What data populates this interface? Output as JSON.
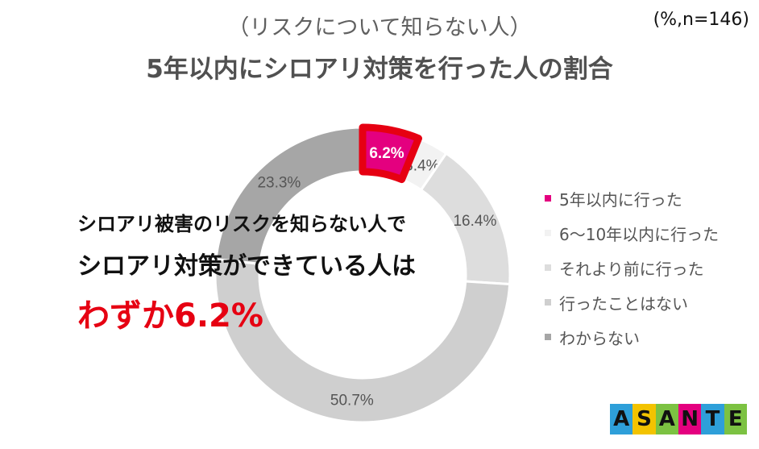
{
  "header": {
    "subtitle": "（リスクについて知らない人）",
    "title": "5年以内にシロアリ対策を行った人の割合",
    "unit": "(%,n=146)"
  },
  "callout": {
    "line1": "シロアリ被害のリスクを知らない人で",
    "line2": "シロアリ対策ができている人は",
    "line3": "わずか6.2%"
  },
  "chart_data": {
    "type": "pie",
    "donut": true,
    "categories": [
      "5年以内に行った",
      "6～10年以内に行った",
      "それより前に行った",
      "行ったことはない",
      "わからない"
    ],
    "values": [
      6.2,
      3.4,
      16.4,
      50.7,
      23.3
    ],
    "labels": [
      "6.2%",
      "3.4%",
      "16.4%",
      "50.7%",
      "23.3%"
    ],
    "colors": [
      "#e4007f",
      "#f2f2f2",
      "#dddddd",
      "#cfcfcf",
      "#a6a6a6"
    ],
    "highlight": "5年以内に行った",
    "highlight_border": "#e60012",
    "legend_position": "right"
  },
  "logo": {
    "letters": [
      "A",
      "S",
      "A",
      "N",
      "T",
      "E"
    ],
    "colors": [
      "#2e9fd9",
      "#f3c300",
      "#7cc242",
      "#e4007f",
      "#2e9fd9",
      "#7cc242"
    ]
  }
}
